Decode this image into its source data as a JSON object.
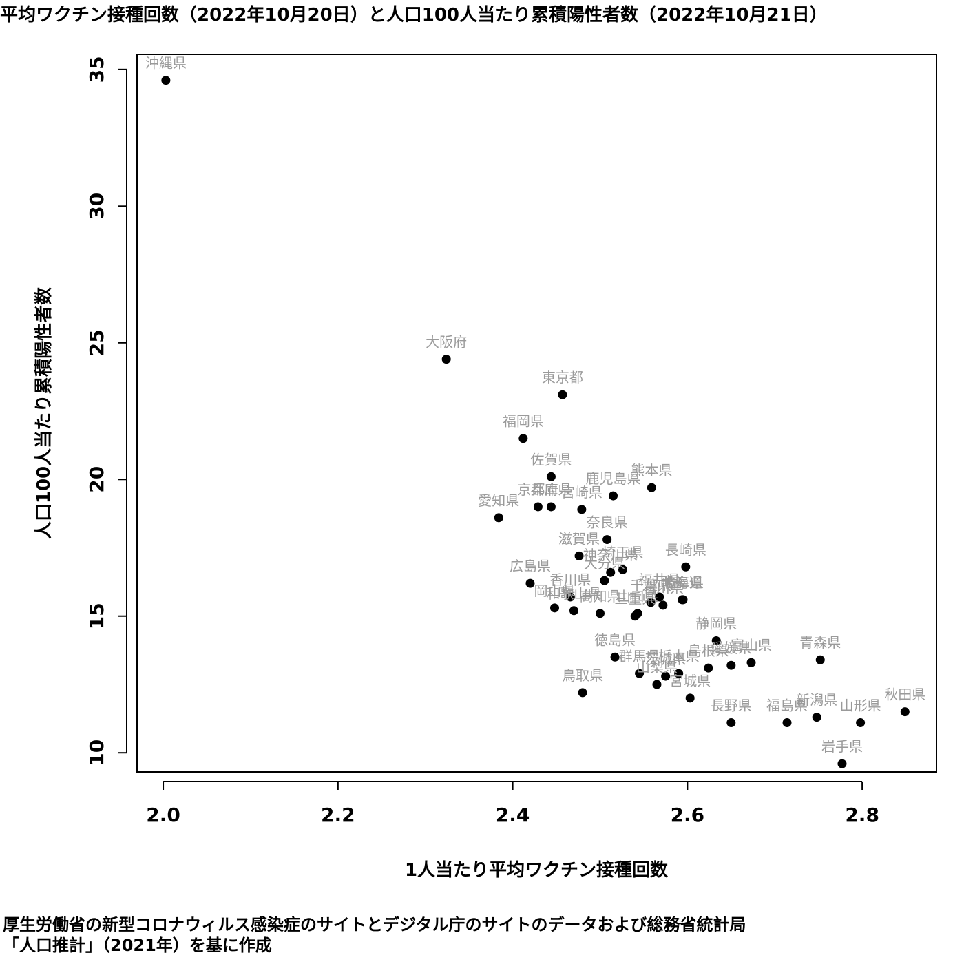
{
  "chart_data": {
    "type": "scatter",
    "title": "平均ワクチン接種回数（2022年10月20日）と人口100人当たり累積陽性者数（2022年10月21日）",
    "xlabel": "1人当たり平均ワクチン接種回数",
    "ylabel": "人口100人当たり累積陽性者数",
    "xlim": [
      1.97,
      2.885
    ],
    "ylim": [
      9.3,
      35.55
    ],
    "xticks": [
      "2.0",
      "2.2",
      "2.4",
      "2.6",
      "2.8"
    ],
    "yticks": [
      "10",
      "15",
      "20",
      "25",
      "30",
      "35"
    ],
    "grid": false,
    "points": [
      {
        "label": "沖縄県",
        "x": 2.003,
        "y": 34.6
      },
      {
        "label": "大阪府",
        "x": 2.324,
        "y": 24.4
      },
      {
        "label": "東京都",
        "x": 2.457,
        "y": 23.1
      },
      {
        "label": "福岡県",
        "x": 2.412,
        "y": 21.5
      },
      {
        "label": "佐賀県",
        "x": 2.444,
        "y": 20.1
      },
      {
        "label": "熊本県",
        "x": 2.559,
        "y": 19.7
      },
      {
        "label": "鹿児島県",
        "x": 2.515,
        "y": 19.4
      },
      {
        "label": "京都府",
        "x": 2.429,
        "y": 19.0
      },
      {
        "label": "兵庫県",
        "x": 2.444,
        "y": 19.0
      },
      {
        "label": "宮崎県",
        "x": 2.479,
        "y": 18.9
      },
      {
        "label": "愛知県",
        "x": 2.384,
        "y": 18.6
      },
      {
        "label": "奈良県",
        "x": 2.508,
        "y": 17.8
      },
      {
        "label": "滋賀県",
        "x": 2.476,
        "y": 17.2
      },
      {
        "label": "長崎県",
        "x": 2.598,
        "y": 16.8
      },
      {
        "label": "神奈川県",
        "x": 2.512,
        "y": 16.6
      },
      {
        "label": "埼玉県",
        "x": 2.526,
        "y": 16.7
      },
      {
        "label": "大分県",
        "x": 2.505,
        "y": 16.3
      },
      {
        "label": "広島県",
        "x": 2.42,
        "y": 16.2
      },
      {
        "label": "香川県",
        "x": 2.466,
        "y": 15.7
      },
      {
        "label": "岡山県",
        "x": 2.448,
        "y": 15.3
      },
      {
        "label": "和歌山県",
        "x": 2.47,
        "y": 15.2
      },
      {
        "label": "高知県",
        "x": 2.5,
        "y": 15.1
      },
      {
        "label": "三重県",
        "x": 2.54,
        "y": 15.0
      },
      {
        "label": "山口県",
        "x": 2.543,
        "y": 15.1
      },
      {
        "label": "千葉県",
        "x": 2.558,
        "y": 15.5
      },
      {
        "label": "石川県",
        "x": 2.572,
        "y": 15.4
      },
      {
        "label": "福井県",
        "x": 2.568,
        "y": 15.7
      },
      {
        "label": "北海道",
        "x": 2.594,
        "y": 15.6
      },
      {
        "label": "岐阜県",
        "x": 2.595,
        "y": 15.6
      },
      {
        "label": "静岡県",
        "x": 2.633,
        "y": 14.1
      },
      {
        "label": "島根県",
        "x": 2.624,
        "y": 13.1
      },
      {
        "label": "愛媛県",
        "x": 2.65,
        "y": 13.2
      },
      {
        "label": "富山県",
        "x": 2.673,
        "y": 13.3
      },
      {
        "label": "青森県",
        "x": 2.752,
        "y": 13.4
      },
      {
        "label": "徳島県",
        "x": 2.517,
        "y": 13.5
      },
      {
        "label": "群馬県",
        "x": 2.545,
        "y": 12.9
      },
      {
        "label": "茨城県",
        "x": 2.575,
        "y": 12.8
      },
      {
        "label": "山梨県",
        "x": 2.565,
        "y": 12.5
      },
      {
        "label": "栃木県",
        "x": 2.59,
        "y": 12.9
      },
      {
        "label": "宮城県",
        "x": 2.603,
        "y": 12.0
      },
      {
        "label": "鳥取県",
        "x": 2.48,
        "y": 12.2
      },
      {
        "label": "福島県",
        "x": 2.714,
        "y": 11.1
      },
      {
        "label": "新潟県",
        "x": 2.748,
        "y": 11.3
      },
      {
        "label": "長野県",
        "x": 2.65,
        "y": 11.1
      },
      {
        "label": "山形県",
        "x": 2.798,
        "y": 11.1
      },
      {
        "label": "秋田県",
        "x": 2.849,
        "y": 11.5
      },
      {
        "label": "岩手県",
        "x": 2.777,
        "y": 9.6
      }
    ]
  },
  "caption": {
    "line1": "厚生労働省の新型コロナウィルス感染症のサイトとデジタル庁のサイトのデータおよび総務省統計局",
    "line2": "「人口推計」（2021年）を基に作成"
  }
}
